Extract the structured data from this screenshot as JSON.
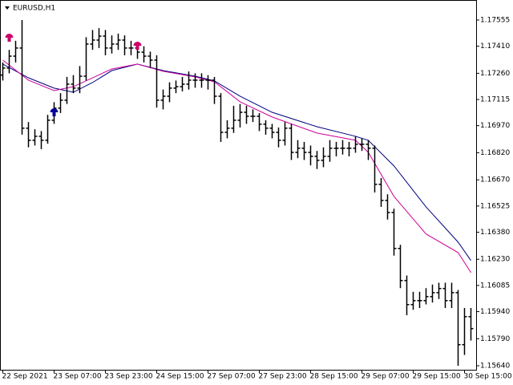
{
  "chart_data": {
    "type": "ohlc",
    "title": "EURUSD,H1",
    "color": "#000000",
    "categories": [
      "22 Sep 2021",
      null,
      null,
      null,
      null,
      null,
      null,
      null,
      "23 Sep 07:00",
      null,
      null,
      null,
      null,
      null,
      null,
      null,
      "23 Sep 23:00",
      null,
      null,
      null,
      null,
      null,
      null,
      null,
      "24 Sep 15:00",
      null,
      null,
      null,
      null,
      null,
      null,
      null,
      "27 Sep 07:00",
      null,
      null,
      null,
      null,
      null,
      null,
      null,
      "27 Sep 23:00",
      null,
      null,
      null,
      null,
      null,
      null,
      null,
      "28 Sep 15:00",
      null,
      null,
      null,
      null,
      null,
      null,
      null,
      "29 Sep 07:00",
      null,
      null,
      null,
      null,
      null,
      null,
      null,
      "29 Sep 15:00",
      null,
      null,
      null,
      null,
      null,
      null,
      null,
      "30 Sep 15:00",
      null
    ],
    "open": [
      1.1725,
      1.17289,
      1.17355,
      1.174,
      1.16956,
      1.16889,
      1.16911,
      1.16889,
      1.17,
      1.17067,
      1.17111,
      1.172,
      1.17178,
      1.17244,
      1.17422,
      1.17444,
      1.17466,
      1.174,
      1.17422,
      1.17444,
      1.174,
      1.174,
      1.17377,
      1.17355,
      1.17333,
      1.17111,
      1.17133,
      1.17178,
      1.17186,
      1.172,
      1.17222,
      1.17222,
      1.17222,
      1.17222,
      1.17133,
      1.16933,
      1.16956,
      1.17,
      1.17044,
      1.17022,
      1.17022,
      1.16978,
      1.16956,
      1.16933,
      1.16889,
      1.16956,
      1.16822,
      1.16845,
      1.16822,
      1.168,
      1.16778,
      1.168,
      1.16845,
      1.16845,
      1.16845,
      1.16845,
      1.16867,
      1.16867,
      1.16845,
      1.16645,
      1.16556,
      1.16489,
      1.1629,
      1.16112,
      1.15979,
      1.16001,
      1.16001,
      1.16023,
      1.16045,
      1.16068,
      1.16001,
      1.16045,
      1.15757,
      1.15912
    ],
    "high": [
      1.1732,
      1.1739,
      1.1744,
      1.17555,
      1.1699,
      1.1695,
      1.1694,
      1.1703,
      1.171,
      1.1715,
      1.1724,
      1.1725,
      1.173,
      1.1746,
      1.175,
      1.1751,
      1.175,
      1.1747,
      1.1748,
      1.1747,
      1.1744,
      1.1743,
      1.1741,
      1.1738,
      1.1736,
      1.1717,
      1.1721,
      1.1722,
      1.1724,
      1.1727,
      1.1726,
      1.1726,
      1.1725,
      1.1724,
      1.1715,
      1.17,
      1.1708,
      1.1709,
      1.1708,
      1.1706,
      1.1704,
      1.17,
      1.1698,
      1.1696,
      1.1699,
      1.1698,
      1.1689,
      1.1688,
      1.1686,
      1.1683,
      1.1685,
      1.1689,
      1.1688,
      1.1689,
      1.1688,
      1.1691,
      1.169,
      1.1689,
      1.1686,
      1.1668,
      1.1659,
      1.1651,
      1.1631,
      1.1614,
      1.1605,
      1.1605,
      1.1607,
      1.1609,
      1.161,
      1.161,
      1.161,
      1.1606,
      1.1596,
      1.1596
    ],
    "low": [
      1.1722,
      1.1726,
      1.1732,
      1.1692,
      1.1685,
      1.1686,
      1.1684,
      1.1687,
      1.1698,
      1.1704,
      1.1709,
      1.1715,
      1.1715,
      1.1722,
      1.1739,
      1.174,
      1.1736,
      1.1737,
      1.1739,
      1.1736,
      1.1736,
      1.1734,
      1.1732,
      1.1729,
      1.1707,
      1.1706,
      1.171,
      1.1715,
      1.1716,
      1.1717,
      1.1718,
      1.1718,
      1.1717,
      1.1709,
      1.1688,
      1.169,
      1.1693,
      1.1696,
      1.1698,
      1.1699,
      1.1694,
      1.1692,
      1.169,
      1.1685,
      1.1686,
      1.1678,
      1.1679,
      1.1678,
      1.1675,
      1.1673,
      1.1674,
      1.1677,
      1.168,
      1.1681,
      1.168,
      1.1682,
      1.1683,
      1.1678,
      1.166,
      1.1652,
      1.1645,
      1.1625,
      1.1607,
      1.1592,
      1.1595,
      1.1596,
      1.1598,
      1.1599,
      1.1601,
      1.1596,
      1.1596,
      1.1564,
      1.157,
      1.1578
    ],
    "close": [
      1.17289,
      1.17355,
      1.174,
      1.16956,
      1.16889,
      1.16911,
      1.16889,
      1.17,
      1.17067,
      1.17111,
      1.172,
      1.17178,
      1.17244,
      1.17422,
      1.17444,
      1.17466,
      1.174,
      1.17422,
      1.17444,
      1.174,
      1.174,
      1.17377,
      1.17355,
      1.17333,
      1.17111,
      1.17133,
      1.17178,
      1.17186,
      1.172,
      1.17222,
      1.17222,
      1.17222,
      1.17222,
      1.17133,
      1.16933,
      1.16956,
      1.17,
      1.17044,
      1.17022,
      1.17022,
      1.16978,
      1.16956,
      1.16933,
      1.16889,
      1.16956,
      1.16822,
      1.16845,
      1.16822,
      1.168,
      1.16778,
      1.168,
      1.16845,
      1.16845,
      1.16845,
      1.16845,
      1.16867,
      1.16867,
      1.16845,
      1.16645,
      1.16556,
      1.16489,
      1.1629,
      1.16112,
      1.15979,
      1.16001,
      1.16001,
      1.16023,
      1.16045,
      1.16068,
      1.16001,
      1.16045,
      1.15757,
      1.15912,
      1.15846
    ],
    "lines": [
      {
        "color": "#000080",
        "index": [
          0,
          4,
          8,
          11,
          14,
          17,
          21,
          25,
          30,
          33,
          37,
          42,
          49,
          55,
          57,
          61,
          66,
          71,
          73
        ],
        "values": [
          1.17311,
          1.17235,
          1.17178,
          1.17155,
          1.17209,
          1.17275,
          1.17311,
          1.17275,
          1.17244,
          1.17218,
          1.17133,
          1.17044,
          1.16964,
          1.16911,
          1.16889,
          1.16747,
          1.1652,
          1.16325,
          1.16223
        ]
      },
      {
        "color": "#cc0099",
        "index": [
          0,
          4,
          8,
          11,
          14,
          17,
          21,
          25,
          30,
          33,
          37,
          42,
          49,
          55,
          57,
          61,
          66,
          71,
          73
        ],
        "values": [
          1.17333,
          1.17222,
          1.17164,
          1.17186,
          1.17235,
          1.17284,
          1.17311,
          1.17271,
          1.1724,
          1.17213,
          1.17102,
          1.17018,
          1.16929,
          1.16889,
          1.16822,
          1.16578,
          1.1637,
          1.16267,
          1.16156
        ]
      }
    ],
    "signals": [
      {
        "color": "#cc0066",
        "index": 1,
        "value": 1.17457
      },
      {
        "color": "#000099",
        "index": 8,
        "value": 1.17044
      },
      {
        "color": "#cc0066",
        "index": 21,
        "value": 1.17413
      }
    ],
    "ylim": [
      1.15618,
      1.17666
    ],
    "yticks": [
      {
        "value": 1.17555,
        "label": "1.17555"
      },
      {
        "value": 1.1741,
        "label": "1.17410"
      },
      {
        "value": 1.1726,
        "label": "1.17260"
      },
      {
        "value": 1.17115,
        "label": "1.17115"
      },
      {
        "value": 1.1697,
        "label": "1.16970"
      },
      {
        "value": 1.1682,
        "label": "1.16820"
      },
      {
        "value": 1.1667,
        "label": "1.16670"
      },
      {
        "value": 1.16525,
        "label": "1.16525"
      },
      {
        "value": 1.1638,
        "label": "1.16380"
      },
      {
        "value": 1.1623,
        "label": "1.16230"
      },
      {
        "value": 1.16085,
        "label": "1.16085"
      },
      {
        "value": 1.1594,
        "label": "1.15940"
      },
      {
        "value": 1.1579,
        "label": "1.15790"
      },
      {
        "value": 1.1564,
        "label": "1.15640"
      }
    ],
    "grid": false
  }
}
